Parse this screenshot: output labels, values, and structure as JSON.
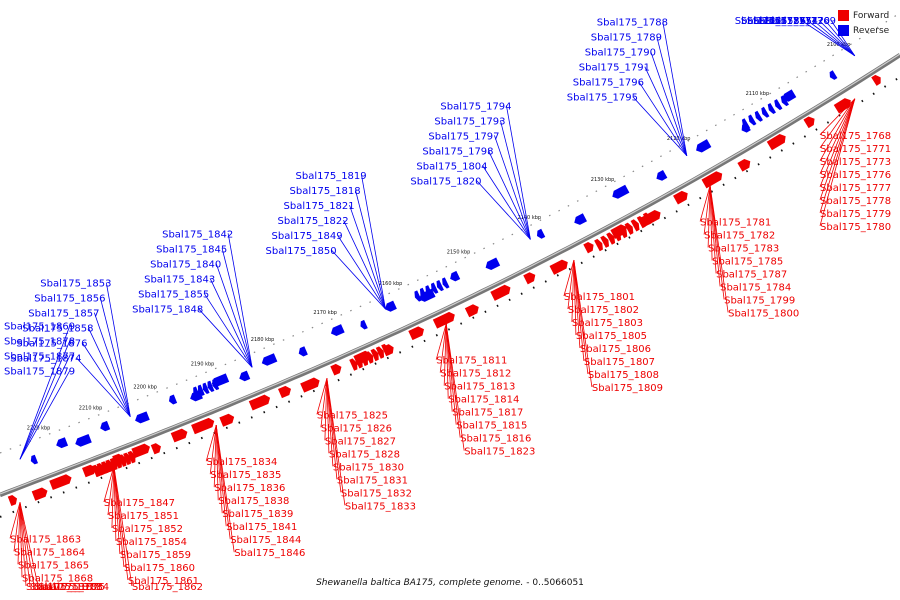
{
  "legend": {
    "forward_label": "Forward",
    "reverse_label": "Reverse",
    "forward_color": "#ee0000",
    "reverse_color": "#0000ee"
  },
  "caption": {
    "organism": "Shewanella baltica BA175, complete genome.",
    "range": " - 0..5066051"
  },
  "ticks": [
    "2100 kbp",
    "2110 kbp",
    "2120 kbp",
    "2130 kbp",
    "2140 kbp",
    "2150 kbp",
    "2160 kbp",
    "2170 kbp",
    "2180 kbp",
    "2190 kbp",
    "2200 kbp",
    "2210 kbp",
    "2220 kbp"
  ],
  "reverse_labels": [
    "Sbal175_1769",
    "Sbal175_1770",
    "Sbal175_1772",
    "Sbal175_1774",
    "Sbal175_1775",
    "Sbal175_1786",
    "Sbal175_1788",
    "Sbal175_1789",
    "Sbal175_1790",
    "Sbal175_1791",
    "Sbal175_1796",
    "Sbal175_1795",
    "Sbal175_1794",
    "Sbal175_1793",
    "Sbal175_1797",
    "Sbal175_1798",
    "Sbal175_1804",
    "Sbal175_1820",
    "Sbal175_1819",
    "Sbal175_1818",
    "Sbal175_1821",
    "Sbal175_1822",
    "Sbal175_1849",
    "Sbal175_1850",
    "Sbal175_1842",
    "Sbal175_1845",
    "Sbal175_1840",
    "Sbal175_1843",
    "Sbal175_1855",
    "Sbal175_1848",
    "Sbal175_1853",
    "Sbal175_1856",
    "Sbal175_1857",
    "Sbal175_1858",
    "Sbal175_1876",
    "Sbal175_1874",
    "Sbal175_1869",
    "Sbal175_1878",
    "Sbal175_1877",
    "Sbal175_1879"
  ],
  "forward_labels": [
    "Sbal175_1768",
    "Sbal175_1771",
    "Sbal175_1773",
    "Sbal175_1776",
    "Sbal175_1777",
    "Sbal175_1778",
    "Sbal175_1779",
    "Sbal175_1780",
    "Sbal175_1781",
    "Sbal175_1782",
    "Sbal175_1783",
    "Sbal175_1785",
    "Sbal175_1787",
    "Sbal175_1784",
    "Sbal175_1799",
    "Sbal175_1800",
    "Sbal175_1801",
    "Sbal175_1802",
    "Sbal175_1803",
    "Sbal175_1805",
    "Sbal175_1806",
    "Sbal175_1807",
    "Sbal175_1808",
    "Sbal175_1809",
    "Sbal175_1811",
    "Sbal175_1812",
    "Sbal175_1813",
    "Sbal175_1814",
    "Sbal175_1817",
    "Sbal175_1815",
    "Sbal175_1816",
    "Sbal175_1823",
    "Sbal175_1825",
    "Sbal175_1826",
    "Sbal175_1827",
    "Sbal175_1828",
    "Sbal175_1830",
    "Sbal175_1831",
    "Sbal175_1832",
    "Sbal175_1833",
    "Sbal175_1834",
    "Sbal175_1835",
    "Sbal175_1836",
    "Sbal175_1838",
    "Sbal175_1839",
    "Sbal175_1841",
    "Sbal175_1844",
    "Sbal175_1846",
    "Sbal175_1847",
    "Sbal175_1851",
    "Sbal175_1852",
    "Sbal175_1854",
    "Sbal175_1859",
    "Sbal175_1860",
    "Sbal175_1861",
    "Sbal175_1862",
    "Sbal175_1863",
    "Sbal175_1864",
    "Sbal175_1865",
    "Sbal175_1868",
    "Sbal175_1870",
    "Sbal175_1873",
    "Sbal175_1875",
    "Sbal175_1884"
  ]
}
